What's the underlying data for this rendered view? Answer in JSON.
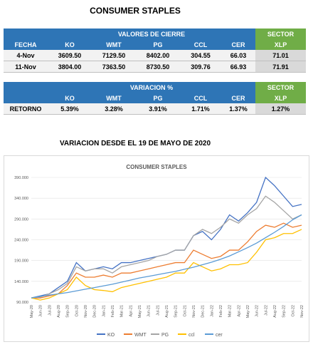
{
  "title": "CONSUMER STAPLES",
  "table1": {
    "header": "VALORES DE CIERRE",
    "sector": "SECTOR",
    "columns": [
      "FECHA",
      "KO",
      "WMT",
      "PG",
      "CCL",
      "CER",
      "XLP"
    ],
    "rows": [
      [
        "4-Nov",
        "3609.50",
        "7129.50",
        "8402.00",
        "304.55",
        "66.03",
        "71.01"
      ],
      [
        "11-Nov",
        "3804.00",
        "7363.50",
        "8730.50",
        "309.76",
        "66.93",
        "71.91"
      ]
    ]
  },
  "table2": {
    "header": "VARIACION %",
    "sector": "SECTOR",
    "columns": [
      "KO",
      "WMT",
      "PG",
      "CCL",
      "CER",
      "XLP"
    ],
    "rows": [
      [
        "RETORNO",
        "5.39%",
        "3.28%",
        "3.91%",
        "1.71%",
        "1.37%",
        "1.27%"
      ]
    ]
  },
  "subtitle": "VARIACION DESDE EL 19 DE MAYO DE 2020",
  "chart_data": {
    "type": "line",
    "title": "CONSUMER STAPLES",
    "categories": [
      "May-20",
      "Jun-20",
      "Jul-20",
      "Aug-20",
      "Sep-20",
      "Oct-20",
      "Nov-20",
      "Dec-20",
      "Jan-21",
      "Feb-21",
      "Mar-21",
      "Apr-21",
      "May-21",
      "Jun-21",
      "Jul-21",
      "Aug-21",
      "Sep-21",
      "Oct-21",
      "Nov-21",
      "Dec-21",
      "Jan-22",
      "Feb-22",
      "Mar-22",
      "Apr-22",
      "May-22",
      "Jun-22",
      "Jul-22",
      "Aug-22",
      "Sep-22",
      "Oct-22",
      "Nov-22"
    ],
    "series": [
      {
        "name": "KO",
        "color": "#4472c4",
        "values": [
          100,
          105,
          110,
          125,
          140,
          185,
          165,
          170,
          175,
          170,
          185,
          185,
          190,
          195,
          200,
          205,
          215,
          215,
          250,
          260,
          240,
          265,
          300,
          285,
          305,
          330,
          390,
          370,
          345,
          320,
          325
        ]
      },
      {
        "name": "WMT",
        "color": "#ed7d31",
        "values": [
          100,
          100,
          105,
          110,
          130,
          160,
          150,
          150,
          155,
          150,
          160,
          160,
          165,
          170,
          175,
          180,
          185,
          185,
          215,
          205,
          195,
          200,
          215,
          215,
          235,
          260,
          275,
          270,
          280,
          270,
          275
        ]
      },
      {
        "name": "PG",
        "color": "#a5a5a5",
        "values": [
          100,
          102,
          110,
          120,
          135,
          175,
          165,
          170,
          170,
          160,
          175,
          180,
          185,
          190,
          200,
          205,
          215,
          215,
          250,
          265,
          255,
          270,
          290,
          280,
          300,
          315,
          345,
          330,
          310,
          290,
          300
        ]
      },
      {
        "name": "ccl",
        "color": "#ffc000",
        "values": [
          100,
          95,
          100,
          110,
          120,
          150,
          130,
          120,
          118,
          115,
          125,
          130,
          135,
          140,
          145,
          150,
          160,
          160,
          185,
          175,
          165,
          170,
          180,
          180,
          185,
          210,
          240,
          245,
          255,
          255,
          265
        ]
      },
      {
        "name": "cer",
        "color": "#5b9bd5",
        "values": [
          100,
          104,
          107,
          110,
          113,
          117,
          121,
          125,
          129,
          133,
          138,
          143,
          148,
          152,
          156,
          160,
          164,
          169,
          174,
          180,
          186,
          193,
          201,
          211,
          221,
          232,
          245,
          258,
          272,
          288,
          300
        ]
      }
    ],
    "ylim": [
      90,
      390
    ],
    "yticks": [
      {
        "value": 90,
        "label": "90.000"
      },
      {
        "value": 140,
        "label": "140.000"
      },
      {
        "value": 190,
        "label": "190.000"
      },
      {
        "value": 240,
        "label": "240.000"
      },
      {
        "value": 290,
        "label": "290.000"
      },
      {
        "value": 340,
        "label": "340.000"
      },
      {
        "value": 390,
        "label": "390.000"
      }
    ],
    "grid": true,
    "legend": "bottom"
  }
}
